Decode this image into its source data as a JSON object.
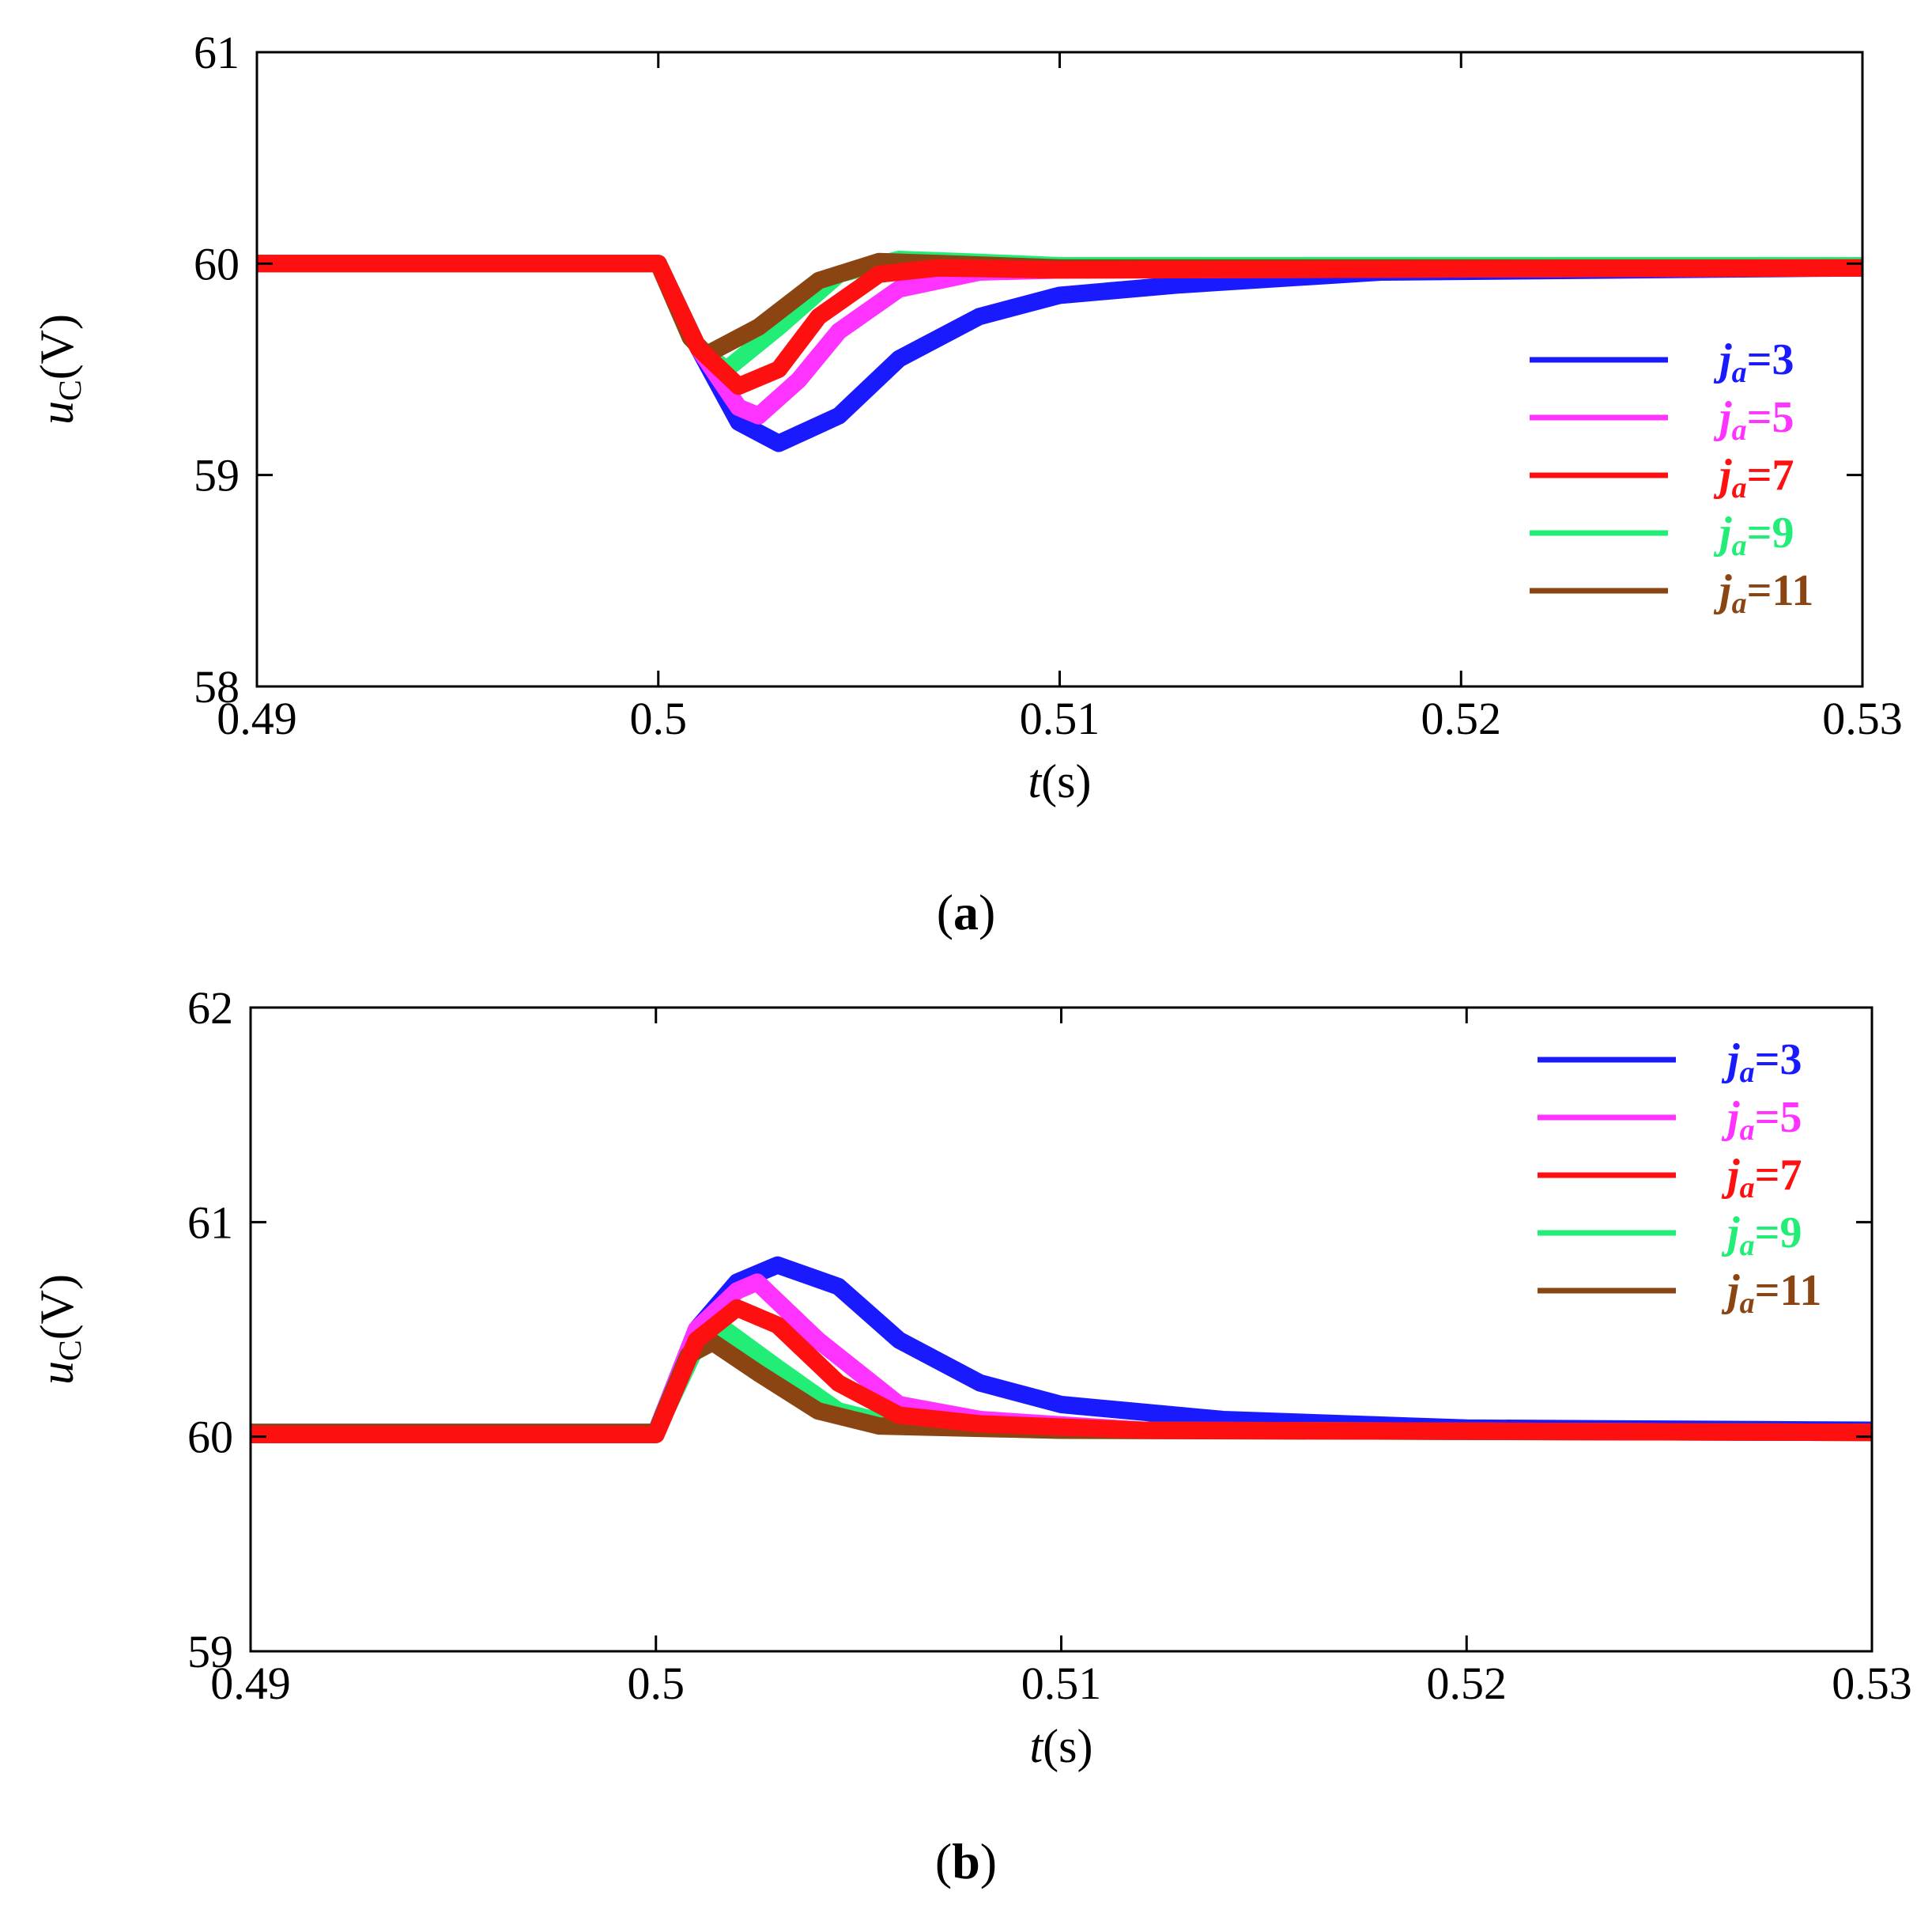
{
  "chart_data": [
    {
      "type": "line",
      "panel_label": "a",
      "xlabel_var": "t",
      "xlabel_unit": "(s)",
      "ylabel_var": "u",
      "ylabel_sub": "C",
      "ylabel_unit": "(V)",
      "xlim": [
        0.49,
        0.53
      ],
      "ylim": [
        58,
        61
      ],
      "xticks": [
        "0.49",
        "0.5",
        "0.51",
        "0.52",
        "0.53"
      ],
      "yticks": [
        "58",
        "59",
        "60",
        "61"
      ],
      "legend_position": "right-middle",
      "series": [
        {
          "name": "ja=3",
          "var": "j",
          "sub": "a",
          "eq": "=3",
          "color": "#1a1aff",
          "t": [
            0.49,
            0.5,
            0.501,
            0.502,
            0.503,
            0.5045,
            0.506,
            0.508,
            0.51,
            0.513,
            0.518,
            0.53
          ],
          "v": [
            60.0,
            60.0,
            59.6,
            59.25,
            59.15,
            59.28,
            59.55,
            59.75,
            59.85,
            59.9,
            59.96,
            59.98
          ]
        },
        {
          "name": "ja=5",
          "var": "j",
          "sub": "a",
          "eq": "=5",
          "color": "#ff33ff",
          "t": [
            0.49,
            0.5,
            0.501,
            0.502,
            0.5025,
            0.5035,
            0.5045,
            0.506,
            0.508,
            0.51,
            0.53
          ],
          "v": [
            60.0,
            60.0,
            59.6,
            59.32,
            59.28,
            59.45,
            59.68,
            59.88,
            59.96,
            59.97,
            59.98
          ]
        },
        {
          "name": "ja=7",
          "var": "j",
          "sub": "a",
          "eq": "=7",
          "color": "#ff1010",
          "t": [
            0.49,
            0.5,
            0.501,
            0.502,
            0.503,
            0.504,
            0.5055,
            0.507,
            0.51,
            0.53
          ],
          "v": [
            60.0,
            60.0,
            59.6,
            59.42,
            59.5,
            59.75,
            59.95,
            59.98,
            59.97,
            59.98
          ]
        },
        {
          "name": "ja=9",
          "var": "j",
          "sub": "a",
          "eq": "=9",
          "color": "#22ee77",
          "t": [
            0.49,
            0.5,
            0.501,
            0.5017,
            0.503,
            0.5045,
            0.506,
            0.5075,
            0.51,
            0.53
          ],
          "v": [
            60.0,
            60.0,
            59.6,
            59.5,
            59.7,
            59.95,
            60.02,
            60.01,
            59.99,
            59.99
          ]
        },
        {
          "name": "ja=11",
          "var": "j",
          "sub": "a",
          "eq": "=11",
          "color": "#8b4513",
          "t": [
            0.49,
            0.5,
            0.5008,
            0.5012,
            0.5025,
            0.504,
            0.5055,
            0.507,
            0.51,
            0.53
          ],
          "v": [
            60.0,
            60.0,
            59.65,
            59.57,
            59.7,
            59.92,
            60.01,
            60.0,
            59.98,
            59.98
          ]
        }
      ]
    },
    {
      "type": "line",
      "panel_label": "b",
      "xlabel_var": "t",
      "xlabel_unit": "(s)",
      "ylabel_var": "u",
      "ylabel_sub": "C",
      "ylabel_unit": "(V)",
      "xlim": [
        0.49,
        0.53
      ],
      "ylim": [
        59,
        62
      ],
      "xticks": [
        "0.49",
        "0.5",
        "0.51",
        "0.52",
        "0.53"
      ],
      "yticks": [
        "59",
        "60",
        "61",
        "62"
      ],
      "legend_position": "top-right",
      "series": [
        {
          "name": "ja=3",
          "var": "j",
          "sub": "a",
          "eq": "=3",
          "color": "#1a1aff",
          "t": [
            0.49,
            0.5,
            0.501,
            0.502,
            0.503,
            0.5045,
            0.506,
            0.508,
            0.51,
            0.514,
            0.52,
            0.53
          ],
          "v": [
            60.02,
            60.02,
            60.5,
            60.72,
            60.8,
            60.7,
            60.45,
            60.25,
            60.15,
            60.08,
            60.04,
            60.03
          ]
        },
        {
          "name": "ja=5",
          "var": "j",
          "sub": "a",
          "eq": "=5",
          "color": "#ff33ff",
          "t": [
            0.49,
            0.5,
            0.501,
            0.502,
            0.5025,
            0.504,
            0.506,
            0.508,
            0.512,
            0.53
          ],
          "v": [
            60.02,
            60.02,
            60.5,
            60.68,
            60.72,
            60.45,
            60.15,
            60.08,
            60.03,
            60.02
          ]
        },
        {
          "name": "ja=7",
          "var": "j",
          "sub": "a",
          "eq": "=7",
          "color": "#ff1010",
          "t": [
            0.49,
            0.5,
            0.501,
            0.502,
            0.503,
            0.5045,
            0.506,
            0.508,
            0.512,
            0.53
          ],
          "v": [
            60.01,
            60.01,
            60.45,
            60.6,
            60.52,
            60.25,
            60.1,
            60.06,
            60.03,
            60.02
          ]
        },
        {
          "name": "ja=9",
          "var": "j",
          "sub": "a",
          "eq": "=9",
          "color": "#22ee77",
          "t": [
            0.49,
            0.5,
            0.501,
            0.5017,
            0.503,
            0.5045,
            0.506,
            0.51,
            0.53
          ],
          "v": [
            60.02,
            60.02,
            60.42,
            60.5,
            60.32,
            60.12,
            60.05,
            60.03,
            60.02
          ]
        },
        {
          "name": "ja=11",
          "var": "j",
          "sub": "a",
          "eq": "=11",
          "color": "#8b4513",
          "t": [
            0.49,
            0.5,
            0.5008,
            0.5014,
            0.5025,
            0.504,
            0.5055,
            0.51,
            0.53
          ],
          "v": [
            60.02,
            60.02,
            60.38,
            60.44,
            60.3,
            60.12,
            60.05,
            60.03,
            60.02
          ]
        }
      ]
    }
  ]
}
